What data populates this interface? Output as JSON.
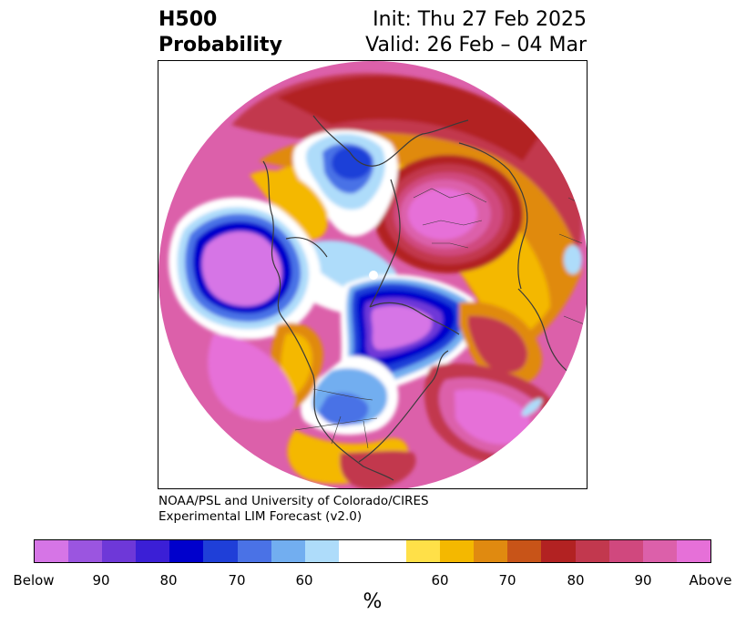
{
  "header": {
    "title_line1": "H500",
    "title_line2": "Probability",
    "init_text": "Init: Thu 27 Feb 2025",
    "valid_text": "Valid: 26 Feb – 04 Mar"
  },
  "credit": {
    "line1": "NOAA/PSL and University of Colorado/CIRES",
    "line2": "Experimental LIM Forecast (v2.0)"
  },
  "colorbar": {
    "colors": [
      "#d675e6",
      "#9b55e0",
      "#6e38d8",
      "#3b1fd6",
      "#0000cc",
      "#1f3fd8",
      "#4a72e6",
      "#72aef0",
      "#aedcfa",
      "#ffffff",
      "#ffffff",
      "#ffe048",
      "#f4b800",
      "#e08a10",
      "#c85418",
      "#b22222",
      "#c2384e",
      "#d0487e",
      "#dc60aa",
      "#e670d8"
    ],
    "tick_labels": [
      "Below",
      "90",
      "80",
      "70",
      "60",
      "60",
      "70",
      "80",
      "90",
      "Above"
    ],
    "unit_label": "%"
  },
  "palette": {
    "above_outer": "#dc60aa",
    "above_core": "#e670d8",
    "above_strong": "#c2384e",
    "warm_red": "#b22222",
    "warm_orange": "#e08a10",
    "warm_yellow": "#f4b800",
    "below_core": "#d675e6",
    "below_dark": "#0000cc",
    "below_mid": "#4a72e6",
    "below_light": "#72aef0",
    "below_faint": "#aedcfa",
    "coastline": "#3a3a3a"
  }
}
